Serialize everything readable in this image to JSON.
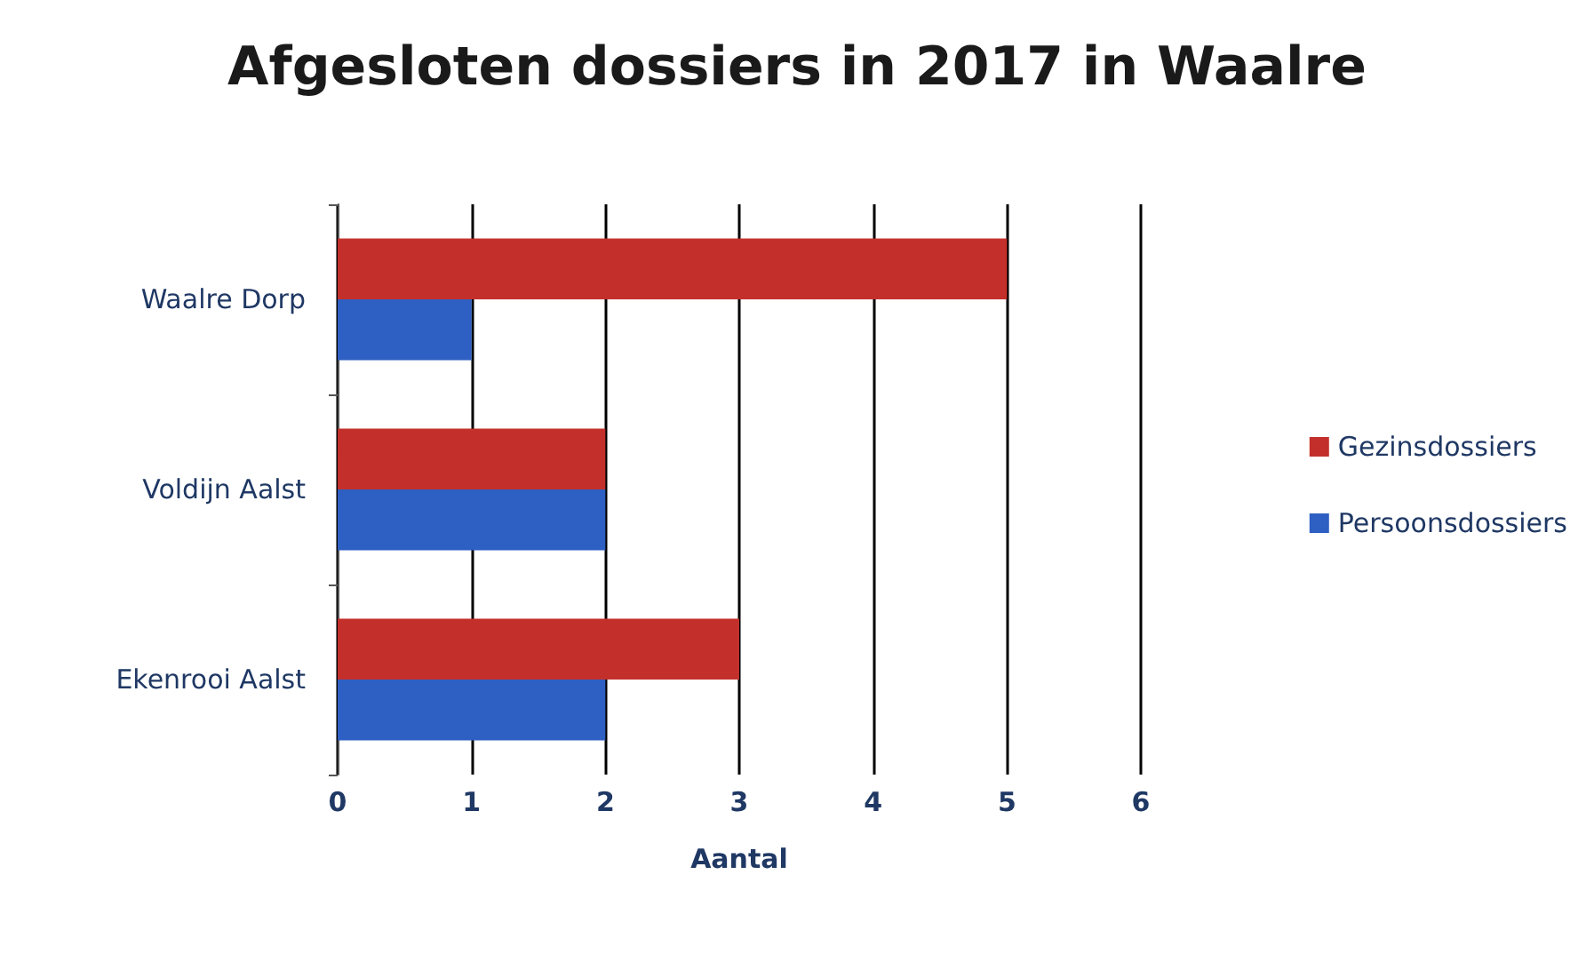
{
  "chart_data": {
    "type": "bar",
    "orientation": "horizontal",
    "title": "Afgesloten dossiers in 2017 in Waalre",
    "xlabel": "Aantal",
    "categories": [
      "Waalre Dorp",
      "Voldijn Aalst",
      "Ekenrooi Aalst"
    ],
    "series": [
      {
        "name": "Gezinsdossiers",
        "color": "#c3302b",
        "values": [
          5,
          2,
          3
        ]
      },
      {
        "name": "Persoonsdossiers",
        "color": "#2e5fc2",
        "values": [
          1,
          2,
          2
        ]
      }
    ],
    "xlim": [
      0,
      6
    ],
    "xticks": [
      0,
      1,
      2,
      3,
      4,
      5,
      6
    ],
    "grid": "x",
    "legend": "right"
  }
}
